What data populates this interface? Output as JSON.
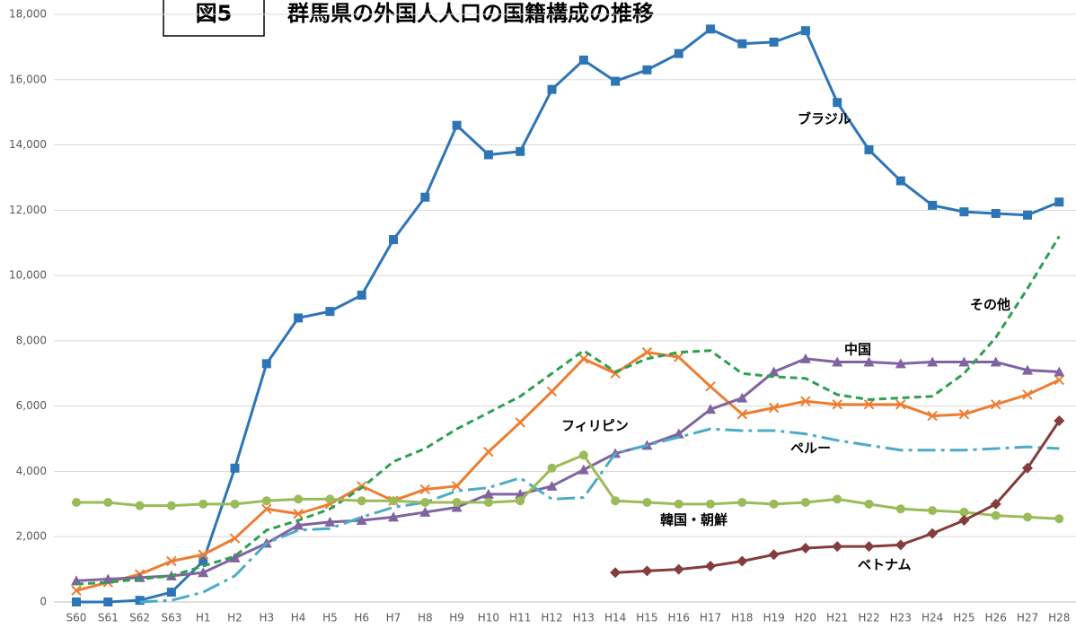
{
  "chart_data": {
    "type": "line",
    "box_label": "図5",
    "title": "群馬県の外国人人口の国籍構成の推移",
    "categories": [
      "S60",
      "S61",
      "S62",
      "S63",
      "H1",
      "H2",
      "H3",
      "H4",
      "H5",
      "H6",
      "H7",
      "H8",
      "H9",
      "H10",
      "H11",
      "H12",
      "H13",
      "H14",
      "H15",
      "H16",
      "H17",
      "H18",
      "H19",
      "H20",
      "H21",
      "H22",
      "H23",
      "H24",
      "H25",
      "H26",
      "H27",
      "H28"
    ],
    "ylim": [
      0,
      18000
    ],
    "yticks": [
      0,
      {
        "value": 2000,
        "label": "2,000"
      },
      {
        "value": 4000,
        "label": "4,000"
      },
      {
        "value": 6000,
        "label": "6,000"
      },
      {
        "value": 8000,
        "label": "8,000"
      },
      {
        "value": 10000,
        "label": "10,000"
      },
      {
        "value": 12000,
        "label": "12,000"
      },
      {
        "value": 14000,
        "label": "14,000"
      },
      {
        "value": 16000,
        "label": "16,000"
      },
      {
        "value": 18000,
        "label": "18,000"
      }
    ],
    "grid": true,
    "series": [
      {
        "name": "ブラジル",
        "color": "#2e75b6",
        "marker": "square",
        "values": [
          0,
          0,
          50,
          300,
          1250,
          4100,
          7300,
          8700,
          8900,
          9400,
          11100,
          12400,
          14600,
          13700,
          13800,
          15700,
          16600,
          15950,
          16300,
          16800,
          17550,
          17100,
          17150,
          17500,
          15300,
          13850,
          12900,
          12150,
          11950,
          11900,
          11850,
          12250
        ]
      },
      {
        "name": "フィリピン",
        "color": "#ed7d31",
        "marker": "x",
        "values": [
          350,
          600,
          850,
          1250,
          1450,
          1950,
          2850,
          2700,
          3000,
          3550,
          3100,
          3450,
          3550,
          4600,
          5500,
          6450,
          7450,
          7000,
          7650,
          7500,
          6600,
          5750,
          5950,
          6150,
          6050,
          6050,
          6050,
          5700,
          5750,
          6050,
          6350,
          6800
        ]
      },
      {
        "name": "中国",
        "color": "#8064a2",
        "marker": "triangle",
        "values": [
          650,
          700,
          750,
          800,
          900,
          1350,
          1800,
          2350,
          2450,
          2500,
          2600,
          2750,
          2900,
          3300,
          3300,
          3550,
          4050,
          4550,
          4800,
          5150,
          5900,
          6250,
          7050,
          7450,
          7350,
          7350,
          7300,
          7350,
          7350,
          7350,
          7100,
          7050
        ]
      },
      {
        "name": "その他",
        "color": "#2ea04f",
        "dash": "8,5",
        "values": [
          550,
          600,
          700,
          800,
          1100,
          1400,
          2200,
          2500,
          2850,
          3500,
          4300,
          4700,
          5300,
          5800,
          6300,
          7000,
          7700,
          7050,
          7450,
          7650,
          7700,
          7000,
          6900,
          6850,
          6350,
          6200,
          6250,
          6300,
          7000,
          8100,
          9600,
          11200
        ]
      },
      {
        "name": "ペルー",
        "color": "#4bacc6",
        "dash": "20,6,4,6",
        "values": [
          null,
          null,
          0,
          50,
          300,
          800,
          1800,
          2200,
          2250,
          2600,
          2900,
          3050,
          3400,
          3500,
          3800,
          3150,
          3200,
          4550,
          4800,
          5050,
          5300,
          5250,
          5250,
          5150,
          4950,
          4800,
          4650,
          4650,
          4650,
          4700,
          4750,
          4700
        ]
      },
      {
        "name": "韓国・朝鮮",
        "color": "#9bbb59",
        "marker": "circle",
        "values": [
          3050,
          3050,
          2950,
          2950,
          3000,
          3000,
          3100,
          3150,
          3150,
          3100,
          3100,
          3050,
          3050,
          3050,
          3100,
          4100,
          4500,
          3100,
          3050,
          3000,
          3000,
          3050,
          3000,
          3050,
          3150,
          3000,
          2850,
          2800,
          2750,
          2650,
          2600,
          2550
        ]
      },
      {
        "name": "ベトナム",
        "color": "#843c3c",
        "marker": "diamond",
        "values": [
          null,
          null,
          null,
          null,
          null,
          null,
          null,
          null,
          null,
          null,
          null,
          null,
          null,
          null,
          null,
          null,
          null,
          900,
          950,
          1000,
          1100,
          1250,
          1450,
          1650,
          1700,
          1700,
          1750,
          2100,
          2500,
          3000,
          4100,
          5550
        ]
      }
    ]
  }
}
